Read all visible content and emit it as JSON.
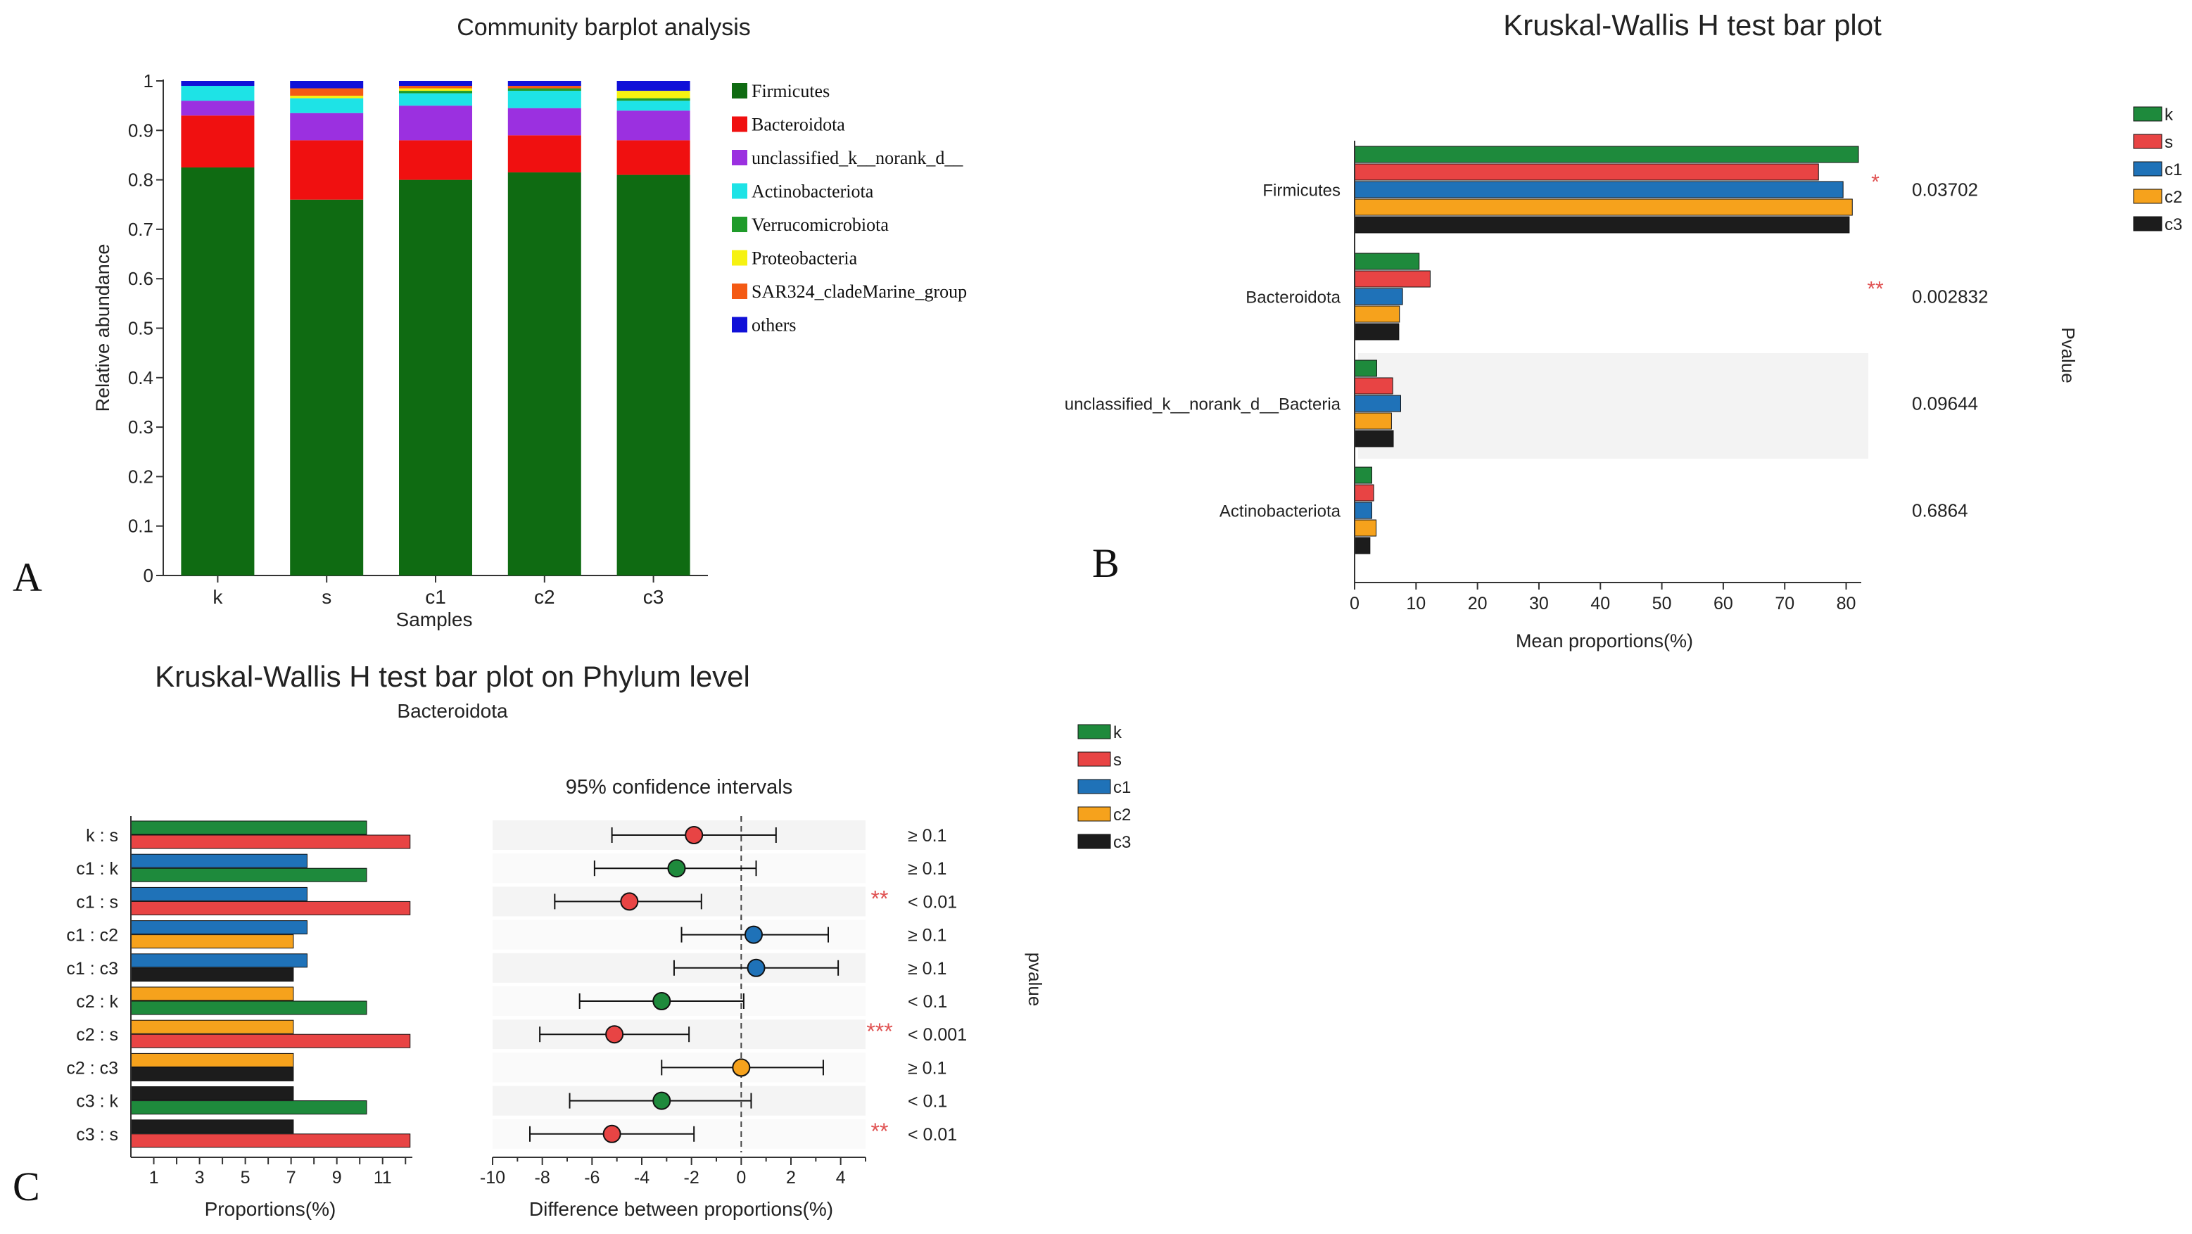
{
  "panel_letters": {
    "a": "A",
    "b": "B",
    "c": "C"
  },
  "colors": {
    "firmicutes": "#0f6b12",
    "bacteroidota": "#f01010",
    "unclassified": "#9b30e0",
    "actinobacteriota": "#1ee3e6",
    "verrucomicrobiota": "#1f9b2a",
    "proteobacteria": "#f6f211",
    "sar324": "#f45a14",
    "others": "#1010d8",
    "k": "#1e8a3c",
    "s": "#e84444",
    "c1": "#1f72b8",
    "c2": "#f6a21c",
    "c3": "#1c1c1c"
  },
  "chart_data": [
    {
      "id": "A",
      "type": "bar",
      "stacked": true,
      "title": "Community barplot analysis",
      "xlabel": "Samples",
      "ylabel": "Relative abundance",
      "ylim": [
        0,
        1
      ],
      "yticks": [
        "0",
        "0.1",
        "0.2",
        "0.3",
        "0.4",
        "0.5",
        "0.6",
        "0.7",
        "0.8",
        "0.9",
        "1"
      ],
      "categories": [
        "k",
        "s",
        "c1",
        "c2",
        "c3"
      ],
      "series": [
        {
          "key": "firmicutes",
          "name": "Firmicutes",
          "values": [
            0.825,
            0.76,
            0.8,
            0.815,
            0.81
          ]
        },
        {
          "key": "bacteroidota",
          "name": "Bacteroidota",
          "values": [
            0.105,
            0.12,
            0.08,
            0.075,
            0.07
          ]
        },
        {
          "key": "unclassified",
          "name": "unclassified_k__norank_d__",
          "values": [
            0.03,
            0.055,
            0.07,
            0.055,
            0.06
          ]
        },
        {
          "key": "actinobacteriota",
          "name": "Actinobacteriota",
          "values": [
            0.03,
            0.03,
            0.025,
            0.035,
            0.02
          ]
        },
        {
          "key": "verrucomicrobiota",
          "name": "Verrucomicrobiota",
          "values": [
            0.0,
            0.0,
            0.005,
            0.005,
            0.005
          ]
        },
        {
          "key": "proteobacteria",
          "name": "Proteobacteria",
          "values": [
            0.0,
            0.005,
            0.005,
            0.0,
            0.015
          ]
        },
        {
          "key": "sar324",
          "name": "SAR324_cladeMarine_group",
          "values": [
            0.0,
            0.015,
            0.005,
            0.005,
            0.0
          ]
        },
        {
          "key": "others",
          "name": "others",
          "values": [
            0.01,
            0.015,
            0.01,
            0.01,
            0.02
          ]
        }
      ]
    },
    {
      "id": "B",
      "type": "bar",
      "orientation": "horizontal",
      "title": "Kruskal-Wallis H test bar plot",
      "xlabel": "Mean proportions(%)",
      "pvalue_label": "Pvalue",
      "xlim": [
        0,
        82
      ],
      "xticks": [
        0,
        10,
        20,
        30,
        40,
        50,
        60,
        70,
        80
      ],
      "group_keys": [
        "k",
        "s",
        "c1",
        "c2",
        "c3"
      ],
      "legend": [
        "k",
        "s",
        "c1",
        "c2",
        "c3"
      ],
      "categories": [
        {
          "name": "Firmicutes",
          "values": [
            82,
            75.5,
            79.5,
            81,
            80.5
          ],
          "pvalue": "0.03702",
          "sig": "*"
        },
        {
          "name": "Bacteroidota",
          "values": [
            10.5,
            12.3,
            7.8,
            7.3,
            7.2
          ],
          "pvalue": "0.002832",
          "sig": "**"
        },
        {
          "name": "unclassified_k__norank_d__Bacteria",
          "values": [
            3.6,
            6.2,
            7.5,
            6.0,
            6.3
          ],
          "pvalue": "0.09644",
          "sig": ""
        },
        {
          "name": "Actinobacteriota",
          "values": [
            2.8,
            3.1,
            2.8,
            3.5,
            2.5
          ],
          "pvalue": "0.6864",
          "sig": ""
        }
      ]
    },
    {
      "id": "C",
      "type": "bar",
      "orientation": "horizontal",
      "title": "Kruskal-Wallis H test bar plot on Phylum level",
      "subtitle": "Bacteroidota",
      "ci_title": "95% confidence intervals",
      "xlabel_left": "Proportions(%)",
      "xlabel_right": "Difference between proportions(%)",
      "pvalue_label": "pvalue",
      "left_xlim": [
        0,
        12.3
      ],
      "left_xticks": [
        1,
        3,
        5,
        7,
        9,
        11
      ],
      "right_xlim": [
        -10,
        5
      ],
      "right_xticks": [
        -10,
        -8,
        -6,
        -4,
        -2,
        0,
        2,
        4
      ],
      "legend": [
        "k",
        "s",
        "c1",
        "c2",
        "c3"
      ],
      "comparisons": [
        {
          "label": "k : s",
          "a": "k",
          "b": "s",
          "va": 10.3,
          "vb": 12.2,
          "diff": -1.9,
          "lo": -5.2,
          "hi": 1.4,
          "dot": "s",
          "p": "≥ 0.1",
          "sig": ""
        },
        {
          "label": "c1 : k",
          "a": "c1",
          "b": "k",
          "va": 7.7,
          "vb": 10.3,
          "diff": -2.6,
          "lo": -5.9,
          "hi": 0.6,
          "dot": "k",
          "p": "≥ 0.1",
          "sig": ""
        },
        {
          "label": "c1 : s",
          "a": "c1",
          "b": "s",
          "va": 7.7,
          "vb": 12.2,
          "diff": -4.5,
          "lo": -7.5,
          "hi": -1.6,
          "dot": "s",
          "p": "< 0.01",
          "sig": "**"
        },
        {
          "label": "c1 : c2",
          "a": "c1",
          "b": "c2",
          "va": 7.7,
          "vb": 7.1,
          "diff": 0.5,
          "lo": -2.4,
          "hi": 3.5,
          "dot": "c1",
          "p": "≥ 0.1",
          "sig": ""
        },
        {
          "label": "c1 : c3",
          "a": "c1",
          "b": "c3",
          "va": 7.7,
          "vb": 7.1,
          "diff": 0.6,
          "lo": -2.7,
          "hi": 3.9,
          "dot": "c1",
          "p": "≥ 0.1",
          "sig": ""
        },
        {
          "label": "c2 : k",
          "a": "c2",
          "b": "k",
          "va": 7.1,
          "vb": 10.3,
          "diff": -3.2,
          "lo": -6.5,
          "hi": 0.1,
          "dot": "k",
          "p": "< 0.1",
          "sig": ""
        },
        {
          "label": "c2 : s",
          "a": "c2",
          "b": "s",
          "va": 7.1,
          "vb": 12.2,
          "diff": -5.1,
          "lo": -8.1,
          "hi": -2.1,
          "dot": "s",
          "p": "< 0.001",
          "sig": "***"
        },
        {
          "label": "c2 : c3",
          "a": "c2",
          "b": "c3",
          "va": 7.1,
          "vb": 7.1,
          "diff": 0.0,
          "lo": -3.2,
          "hi": 3.3,
          "dot": "c2",
          "p": "≥ 0.1",
          "sig": ""
        },
        {
          "label": "c3 : k",
          "a": "c3",
          "b": "k",
          "va": 7.1,
          "vb": 10.3,
          "diff": -3.2,
          "lo": -6.9,
          "hi": 0.4,
          "dot": "k",
          "p": "< 0.1",
          "sig": ""
        },
        {
          "label": "c3 : s",
          "a": "c3",
          "b": "s",
          "va": 7.1,
          "vb": 12.2,
          "diff": -5.2,
          "lo": -8.5,
          "hi": -1.9,
          "dot": "s",
          "p": "< 0.01",
          "sig": "**"
        }
      ]
    }
  ]
}
